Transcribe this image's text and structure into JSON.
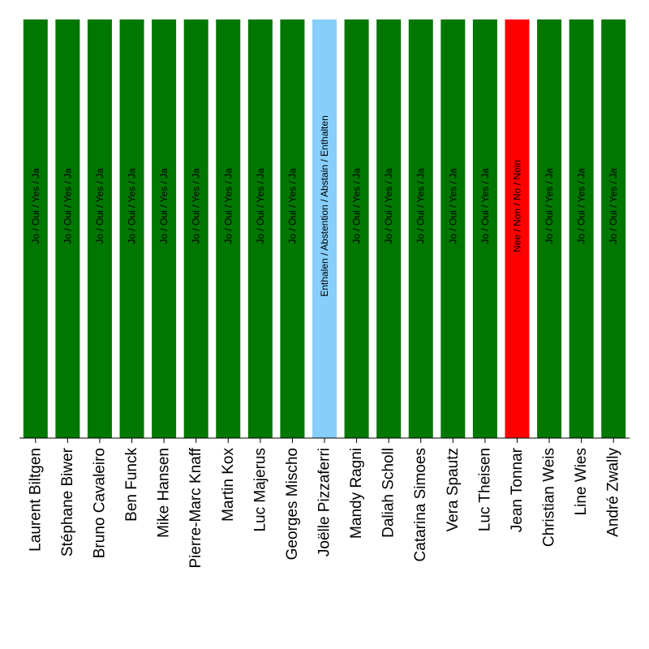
{
  "chart_data": {
    "type": "bar",
    "categories": [
      "Laurent Biltgen",
      "Stéphane Biwer",
      "Bruno Cavaleiro",
      "Ben Funck",
      "Mike Hansen",
      "Pierre-Marc Knaff",
      "Martin Kox",
      "Luc Majerus",
      "Georges Mischo",
      "Joëlle Pizzaferri",
      "Mandy Ragni",
      "Daliah Scholl",
      "Catarina Simoes",
      "Vera Spautz",
      "Luc Theisen",
      "Jean Tonnar",
      "Christian Weis",
      "Line Wies",
      "André Zwally"
    ],
    "values": [
      1,
      1,
      1,
      1,
      1,
      1,
      1,
      1,
      1,
      1,
      1,
      1,
      1,
      1,
      1,
      1,
      1,
      1,
      1
    ],
    "bar_labels": [
      "Jo / Oui / Yes / Ja",
      "Jo / Oui / Yes / Ja",
      "Jo / Oui / Yes / Ja",
      "Jo / Oui / Yes / Ja",
      "Jo / Oui / Yes / Ja",
      "Jo / Oui / Yes / Ja",
      "Jo / Oui / Yes / Ja",
      "Jo / Oui / Yes / Ja",
      "Jo / Oui / Yes / Ja",
      "Enthalen / Abstention / Abstain / Enthalten",
      "Jo / Oui / Yes / Ja",
      "Jo / Oui / Yes / Ja",
      "Jo / Oui / Yes / Ja",
      "Jo / Oui / Yes / Ja",
      "Jo / Oui / Yes / Ja",
      "Nee / Non / No / Nein",
      "Jo / Oui / Yes / Ja",
      "Jo / Oui / Yes / Ja",
      "Jo / Oui / Yes / Ja"
    ],
    "colors": [
      "#007700",
      "#007700",
      "#007700",
      "#007700",
      "#007700",
      "#007700",
      "#007700",
      "#007700",
      "#007700",
      "#87cefa",
      "#007700",
      "#007700",
      "#007700",
      "#007700",
      "#007700",
      "#ff0000",
      "#007700",
      "#007700",
      "#007700"
    ],
    "title": "",
    "xlabel": "",
    "ylabel": "",
    "ylim": [
      0,
      1
    ],
    "grid": false,
    "legend": "none"
  }
}
